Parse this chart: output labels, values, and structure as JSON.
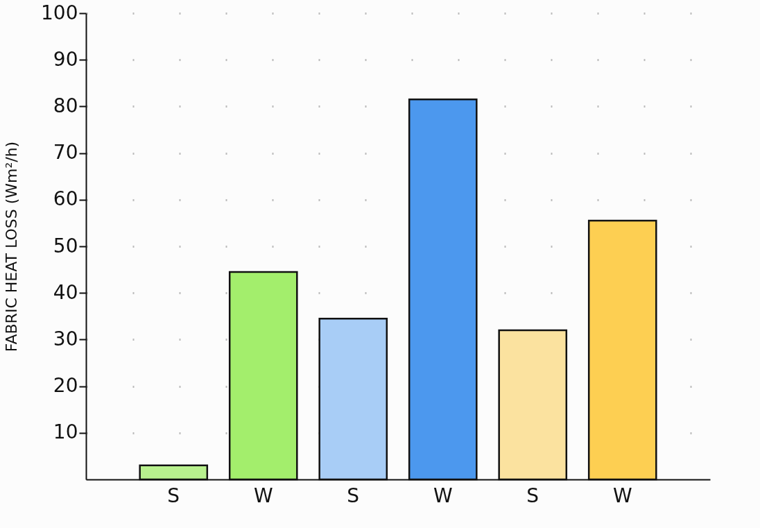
{
  "chart_data": {
    "type": "bar",
    "ylabel": "FABRIC HEAT LOSS (Wm²/h)",
    "categories": [
      "S",
      "W",
      "S",
      "W",
      "S",
      "W"
    ],
    "values": [
      3,
      44.5,
      34.5,
      81.5,
      32,
      55.5
    ],
    "colors": [
      "#b8f08e",
      "#a3ee6c",
      "#a8cdf6",
      "#4c98ee",
      "#fbe29f",
      "#fdcf52"
    ],
    "ylim": [
      0,
      100
    ],
    "yticks": [
      10,
      20,
      30,
      40,
      50,
      60,
      70,
      80,
      90,
      100
    ],
    "grid": "y"
  }
}
